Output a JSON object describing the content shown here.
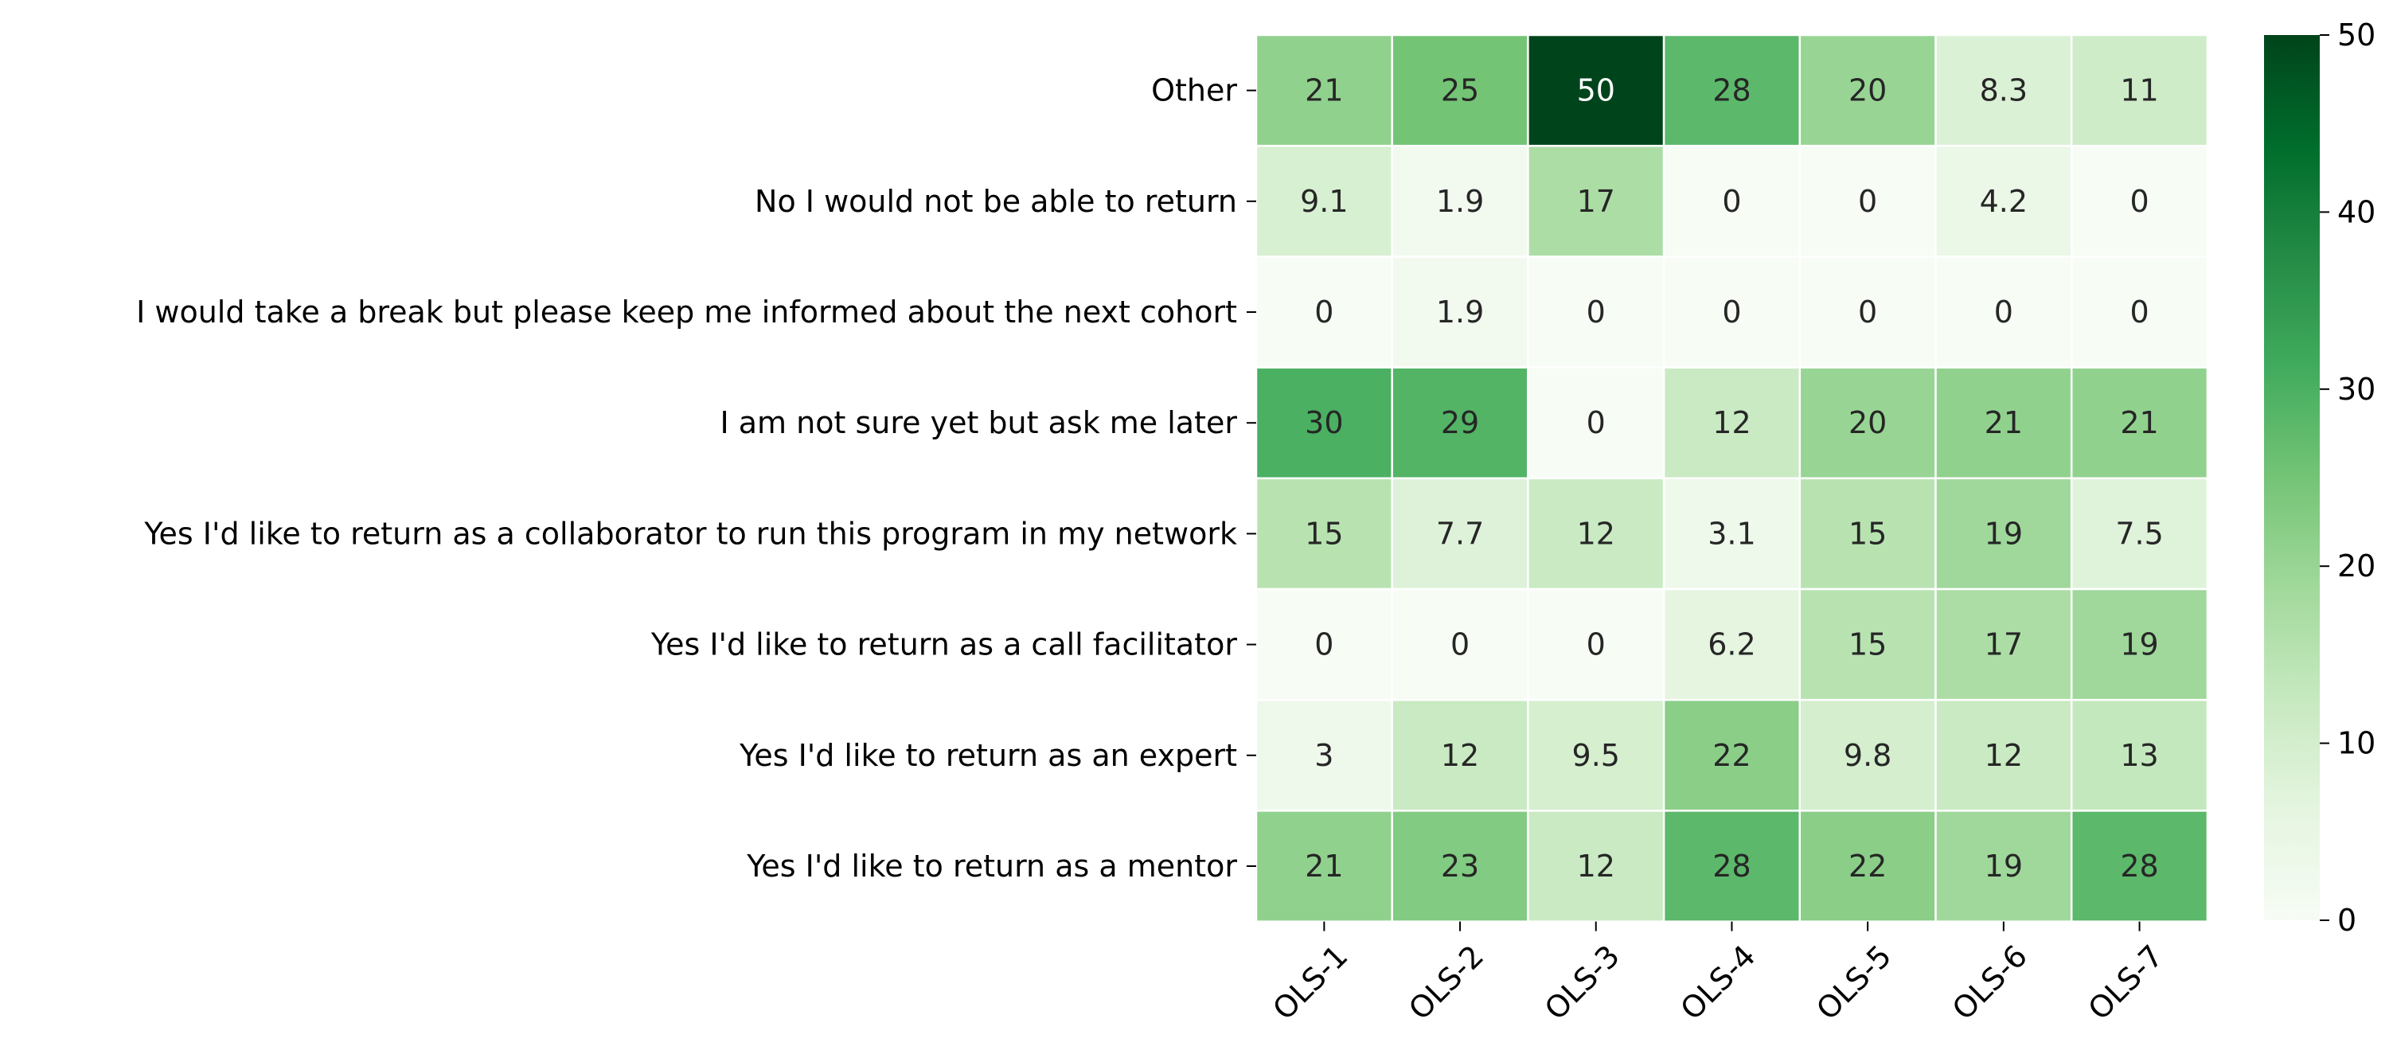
{
  "chart_data": {
    "type": "heatmap",
    "title": "",
    "xlabel": "",
    "ylabel": "",
    "x_categories": [
      "OLS-1",
      "OLS-2",
      "OLS-3",
      "OLS-4",
      "OLS-5",
      "OLS-6",
      "OLS-7"
    ],
    "y_categories": [
      "Other",
      "No I would not be able to return",
      "I would take a break but please keep me informed about the next cohort",
      "I am not sure yet but ask me later",
      "Yes I'd like to return as a collaborator to run this program in my network",
      "Yes I'd like to return as a call facilitator",
      "Yes I'd like to return as an expert",
      "Yes I'd like to return as a mentor"
    ],
    "values": [
      [
        21,
        25,
        50,
        28,
        20,
        8.3,
        11
      ],
      [
        9.1,
        1.9,
        17,
        0,
        0,
        4.2,
        0
      ],
      [
        0,
        1.9,
        0,
        0,
        0,
        0,
        0
      ],
      [
        30,
        29,
        0,
        12,
        20,
        21,
        21
      ],
      [
        15,
        7.7,
        12,
        3.1,
        15,
        19,
        7.5
      ],
      [
        0,
        0,
        0,
        6.2,
        15,
        17,
        19
      ],
      [
        3,
        12,
        9.5,
        22,
        9.8,
        12,
        13
      ],
      [
        21,
        23,
        12,
        28,
        22,
        19,
        28
      ]
    ],
    "colormap": "Greens",
    "color_range": [
      0,
      50
    ],
    "colorbar": {
      "ticks": [
        0,
        10,
        20,
        30,
        40,
        50
      ],
      "tick_labels": [
        "0",
        "10",
        "20",
        "30",
        "40",
        "50"
      ]
    },
    "annotations": true,
    "cell_border_color": "#ffffff",
    "text_colors": {
      "light": "#ffffff",
      "dark": "#262626"
    },
    "legend_position": "right"
  }
}
